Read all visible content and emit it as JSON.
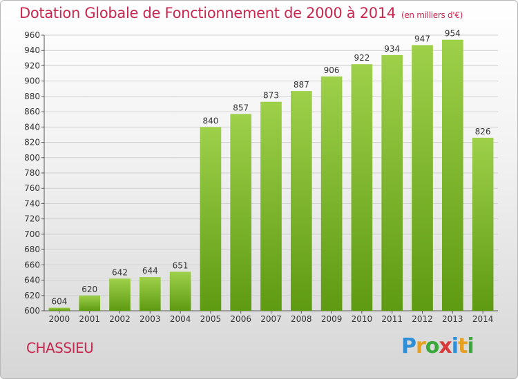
{
  "header": {
    "title": "Dotation Globale de Fonctionnement de 2000 à 2014",
    "unit": "(en milliers d'€)"
  },
  "footer": {
    "commune": "CHASSIEU",
    "brand": "Proxiti"
  },
  "colors": {
    "title": "#c8284f",
    "bar_light": "#9ed04a",
    "bar_dark": "#5e9a12",
    "grid": "#cfcfcf"
  },
  "chart_data": {
    "type": "bar",
    "title": "Dotation Globale de Fonctionnement de 2000 à 2014",
    "subtitle": "(en milliers d'€)",
    "categories": [
      "2000",
      "2001",
      "2002",
      "2003",
      "2004",
      "2005",
      "2006",
      "2007",
      "2008",
      "2009",
      "2010",
      "2011",
      "2012",
      "2013",
      "2014"
    ],
    "values": [
      604,
      620,
      642,
      644,
      651,
      840,
      857,
      873,
      887,
      906,
      922,
      934,
      947,
      954,
      826
    ],
    "ylim": [
      600,
      960
    ],
    "yticks": [
      600,
      620,
      640,
      660,
      680,
      700,
      720,
      740,
      760,
      780,
      800,
      820,
      840,
      860,
      880,
      900,
      920,
      940,
      960
    ],
    "grid": true,
    "data_labels": true
  }
}
